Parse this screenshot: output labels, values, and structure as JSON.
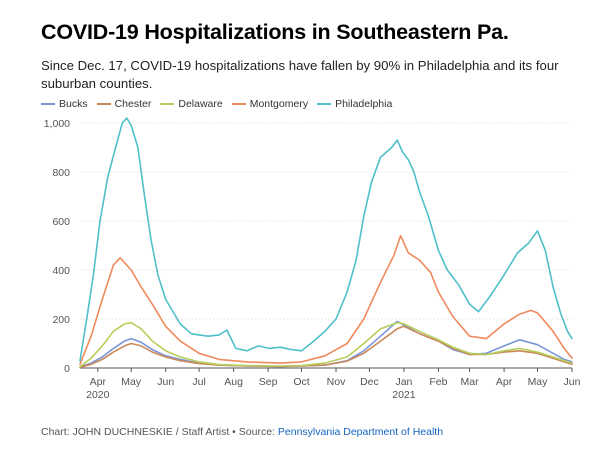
{
  "title": "COVID-19 Hospitalizations in Southeastern Pa.",
  "subtitle": "Since Dec. 17, COVID-19 hospitalizations have fallen by 90% in Philadelphia and its four suburban counties.",
  "footer": {
    "credit": "Chart: JOHN DUCHNESKIE / Staff Artist • Source: ",
    "source_link": "Pennsylvania Department of Health"
  },
  "chart_data": {
    "type": "line",
    "title": "COVID-19 Hospitalizations in Southeastern Pa.",
    "xlabel": "",
    "ylabel": "",
    "ylim": [
      0,
      1000
    ],
    "yticks": [
      0,
      200,
      400,
      600,
      800,
      1000
    ],
    "ytick_labels": [
      "0",
      "200",
      "400",
      "600",
      "800",
      "1,000"
    ],
    "xlim": [
      0,
      442
    ],
    "xticks": [
      {
        "day": 16,
        "label": "Apr",
        "sub": "2020"
      },
      {
        "day": 46,
        "label": "May",
        "sub": ""
      },
      {
        "day": 77,
        "label": "Jun",
        "sub": ""
      },
      {
        "day": 107,
        "label": "Jul",
        "sub": ""
      },
      {
        "day": 138,
        "label": "Aug",
        "sub": ""
      },
      {
        "day": 169,
        "label": "Sep",
        "sub": ""
      },
      {
        "day": 199,
        "label": "Oct",
        "sub": ""
      },
      {
        "day": 230,
        "label": "Nov",
        "sub": ""
      },
      {
        "day": 260,
        "label": "Dec",
        "sub": ""
      },
      {
        "day": 291,
        "label": "Jan",
        "sub": "2021"
      },
      {
        "day": 322,
        "label": "Feb",
        "sub": ""
      },
      {
        "day": 350,
        "label": "Mar",
        "sub": ""
      },
      {
        "day": 381,
        "label": "Apr",
        "sub": ""
      },
      {
        "day": 411,
        "label": "May",
        "sub": ""
      },
      {
        "day": 442,
        "label": "Jun",
        "sub": ""
      }
    ],
    "x_unit": "days since 2020-03-16",
    "series": [
      {
        "name": "Bucks",
        "color": "#7b96d6",
        "points": [
          [
            0,
            4
          ],
          [
            10,
            20
          ],
          [
            20,
            45
          ],
          [
            30,
            80
          ],
          [
            40,
            110
          ],
          [
            46,
            120
          ],
          [
            55,
            105
          ],
          [
            65,
            75
          ],
          [
            77,
            50
          ],
          [
            90,
            35
          ],
          [
            107,
            20
          ],
          [
            125,
            12
          ],
          [
            150,
            8
          ],
          [
            180,
            6
          ],
          [
            199,
            8
          ],
          [
            220,
            12
          ],
          [
            240,
            30
          ],
          [
            255,
            70
          ],
          [
            270,
            130
          ],
          [
            285,
            190
          ],
          [
            291,
            175
          ],
          [
            305,
            140
          ],
          [
            322,
            110
          ],
          [
            335,
            75
          ],
          [
            350,
            55
          ],
          [
            365,
            60
          ],
          [
            381,
            90
          ],
          [
            395,
            115
          ],
          [
            411,
            95
          ],
          [
            425,
            60
          ],
          [
            435,
            35
          ],
          [
            442,
            25
          ]
        ]
      },
      {
        "name": "Chester",
        "color": "#c9895a",
        "points": [
          [
            0,
            3
          ],
          [
            10,
            15
          ],
          [
            20,
            35
          ],
          [
            30,
            65
          ],
          [
            40,
            90
          ],
          [
            46,
            100
          ],
          [
            55,
            90
          ],
          [
            65,
            65
          ],
          [
            77,
            45
          ],
          [
            90,
            30
          ],
          [
            107,
            18
          ],
          [
            125,
            12
          ],
          [
            150,
            8
          ],
          [
            180,
            6
          ],
          [
            199,
            8
          ],
          [
            220,
            12
          ],
          [
            240,
            28
          ],
          [
            255,
            60
          ],
          [
            270,
            110
          ],
          [
            285,
            160
          ],
          [
            291,
            170
          ],
          [
            305,
            140
          ],
          [
            322,
            110
          ],
          [
            335,
            80
          ],
          [
            350,
            55
          ],
          [
            365,
            55
          ],
          [
            381,
            65
          ],
          [
            395,
            70
          ],
          [
            411,
            60
          ],
          [
            425,
            40
          ],
          [
            435,
            25
          ],
          [
            442,
            15
          ]
        ]
      },
      {
        "name": "Delaware",
        "color": "#b5cf5a",
        "points": [
          [
            0,
            5
          ],
          [
            10,
            40
          ],
          [
            20,
            90
          ],
          [
            30,
            150
          ],
          [
            40,
            180
          ],
          [
            46,
            185
          ],
          [
            55,
            160
          ],
          [
            65,
            110
          ],
          [
            77,
            70
          ],
          [
            90,
            45
          ],
          [
            107,
            25
          ],
          [
            125,
            14
          ],
          [
            150,
            10
          ],
          [
            180,
            8
          ],
          [
            199,
            10
          ],
          [
            220,
            20
          ],
          [
            240,
            45
          ],
          [
            255,
            100
          ],
          [
            270,
            160
          ],
          [
            285,
            185
          ],
          [
            291,
            180
          ],
          [
            305,
            150
          ],
          [
            322,
            115
          ],
          [
            335,
            85
          ],
          [
            350,
            60
          ],
          [
            365,
            55
          ],
          [
            381,
            70
          ],
          [
            395,
            80
          ],
          [
            411,
            65
          ],
          [
            425,
            45
          ],
          [
            435,
            30
          ],
          [
            442,
            20
          ]
        ]
      },
      {
        "name": "Montgomery",
        "color": "#f08a5d",
        "points": [
          [
            0,
            15
          ],
          [
            10,
            130
          ],
          [
            20,
            280
          ],
          [
            30,
            420
          ],
          [
            36,
            450
          ],
          [
            46,
            400
          ],
          [
            55,
            330
          ],
          [
            65,
            260
          ],
          [
            77,
            170
          ],
          [
            90,
            110
          ],
          [
            107,
            60
          ],
          [
            125,
            35
          ],
          [
            150,
            25
          ],
          [
            180,
            20
          ],
          [
            199,
            25
          ],
          [
            220,
            50
          ],
          [
            240,
            100
          ],
          [
            255,
            200
          ],
          [
            270,
            350
          ],
          [
            282,
            460
          ],
          [
            288,
            540
          ],
          [
            295,
            470
          ],
          [
            305,
            440
          ],
          [
            315,
            390
          ],
          [
            322,
            310
          ],
          [
            335,
            210
          ],
          [
            350,
            130
          ],
          [
            365,
            120
          ],
          [
            381,
            180
          ],
          [
            395,
            220
          ],
          [
            405,
            235
          ],
          [
            411,
            225
          ],
          [
            425,
            150
          ],
          [
            435,
            80
          ],
          [
            442,
            40
          ]
        ]
      },
      {
        "name": "Philadelphia",
        "color": "#4fbfc9",
        "points": [
          [
            0,
            30
          ],
          [
            6,
            200
          ],
          [
            12,
            380
          ],
          [
            18,
            600
          ],
          [
            25,
            780
          ],
          [
            32,
            900
          ],
          [
            38,
            1000
          ],
          [
            42,
            1020
          ],
          [
            46,
            990
          ],
          [
            52,
            900
          ],
          [
            58,
            700
          ],
          [
            64,
            520
          ],
          [
            70,
            380
          ],
          [
            77,
            280
          ],
          [
            90,
            180
          ],
          [
            100,
            140
          ],
          [
            107,
            135
          ],
          [
            115,
            130
          ],
          [
            125,
            135
          ],
          [
            132,
            155
          ],
          [
            140,
            80
          ],
          [
            150,
            70
          ],
          [
            160,
            90
          ],
          [
            170,
            80
          ],
          [
            180,
            85
          ],
          [
            190,
            75
          ],
          [
            199,
            70
          ],
          [
            210,
            110
          ],
          [
            220,
            150
          ],
          [
            230,
            200
          ],
          [
            240,
            310
          ],
          [
            248,
            440
          ],
          [
            255,
            620
          ],
          [
            262,
            760
          ],
          [
            270,
            860
          ],
          [
            280,
            900
          ],
          [
            285,
            930
          ],
          [
            290,
            880
          ],
          [
            295,
            850
          ],
          [
            300,
            800
          ],
          [
            305,
            720
          ],
          [
            313,
            620
          ],
          [
            322,
            480
          ],
          [
            330,
            400
          ],
          [
            340,
            340
          ],
          [
            350,
            260
          ],
          [
            358,
            230
          ],
          [
            368,
            290
          ],
          [
            381,
            380
          ],
          [
            393,
            470
          ],
          [
            403,
            510
          ],
          [
            411,
            560
          ],
          [
            418,
            480
          ],
          [
            425,
            330
          ],
          [
            432,
            220
          ],
          [
            438,
            150
          ],
          [
            442,
            120
          ]
        ]
      }
    ]
  }
}
